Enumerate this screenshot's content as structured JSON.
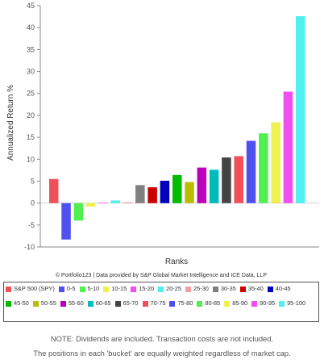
{
  "chart_data": {
    "type": "bar",
    "title": "",
    "xlabel": "Ranks",
    "ylabel": "Annualized Return %",
    "ylim": [
      -10,
      45
    ],
    "yticks": [
      -10,
      -5,
      0,
      5,
      10,
      15,
      20,
      25,
      30,
      35,
      40,
      45
    ],
    "grid": false,
    "legend_position": "bottom",
    "series": [
      {
        "name": "S&P 500 (SPY)",
        "value": 5.5,
        "color": "#f0505a"
      },
      {
        "name": "0-5",
        "value": -8.3,
        "color": "#5050f0"
      },
      {
        "name": "5-10",
        "value": -4.0,
        "color": "#50f050"
      },
      {
        "name": "10-15",
        "value": -0.8,
        "color": "#f0f050"
      },
      {
        "name": "15-20",
        "value": 0.1,
        "color": "#f050f0"
      },
      {
        "name": "20-25",
        "value": 0.6,
        "color": "#50f0f0"
      },
      {
        "name": "25-30",
        "value": 0.2,
        "color": "#f0a0a0"
      },
      {
        "name": "30-35",
        "value": 4.1,
        "color": "#808080"
      },
      {
        "name": "35-40",
        "value": 3.6,
        "color": "#cc0000"
      },
      {
        "name": "40-45",
        "value": 5.1,
        "color": "#0000bb"
      },
      {
        "name": "45-50",
        "value": 6.4,
        "color": "#00bb00"
      },
      {
        "name": "50-55",
        "value": 4.8,
        "color": "#bbbb00"
      },
      {
        "name": "55-60",
        "value": 8.1,
        "color": "#bb00bb"
      },
      {
        "name": "60-65",
        "value": 7.6,
        "color": "#00bbbb"
      },
      {
        "name": "65-70",
        "value": 10.4,
        "color": "#444444"
      },
      {
        "name": "70-75",
        "value": 10.7,
        "color": "#f0505a"
      },
      {
        "name": "75-80",
        "value": 14.2,
        "color": "#5050f0"
      },
      {
        "name": "80-85",
        "value": 15.9,
        "color": "#50f050"
      },
      {
        "name": "85-90",
        "value": 18.4,
        "color": "#f0f050"
      },
      {
        "name": "90-95",
        "value": 25.4,
        "color": "#f050f0"
      },
      {
        "name": "95-100",
        "value": 42.6,
        "color": "#50f0f0"
      }
    ]
  },
  "credit_text": "© Portfolio123 | Data provided by S&P Global Market Intelligence and ICE Data, LLP",
  "notes": {
    "line1": "NOTE: Dividends are included. Transaction costs are not included.",
    "line2": "The positions in each 'bucket' are equally weighted regardless of market cap."
  }
}
